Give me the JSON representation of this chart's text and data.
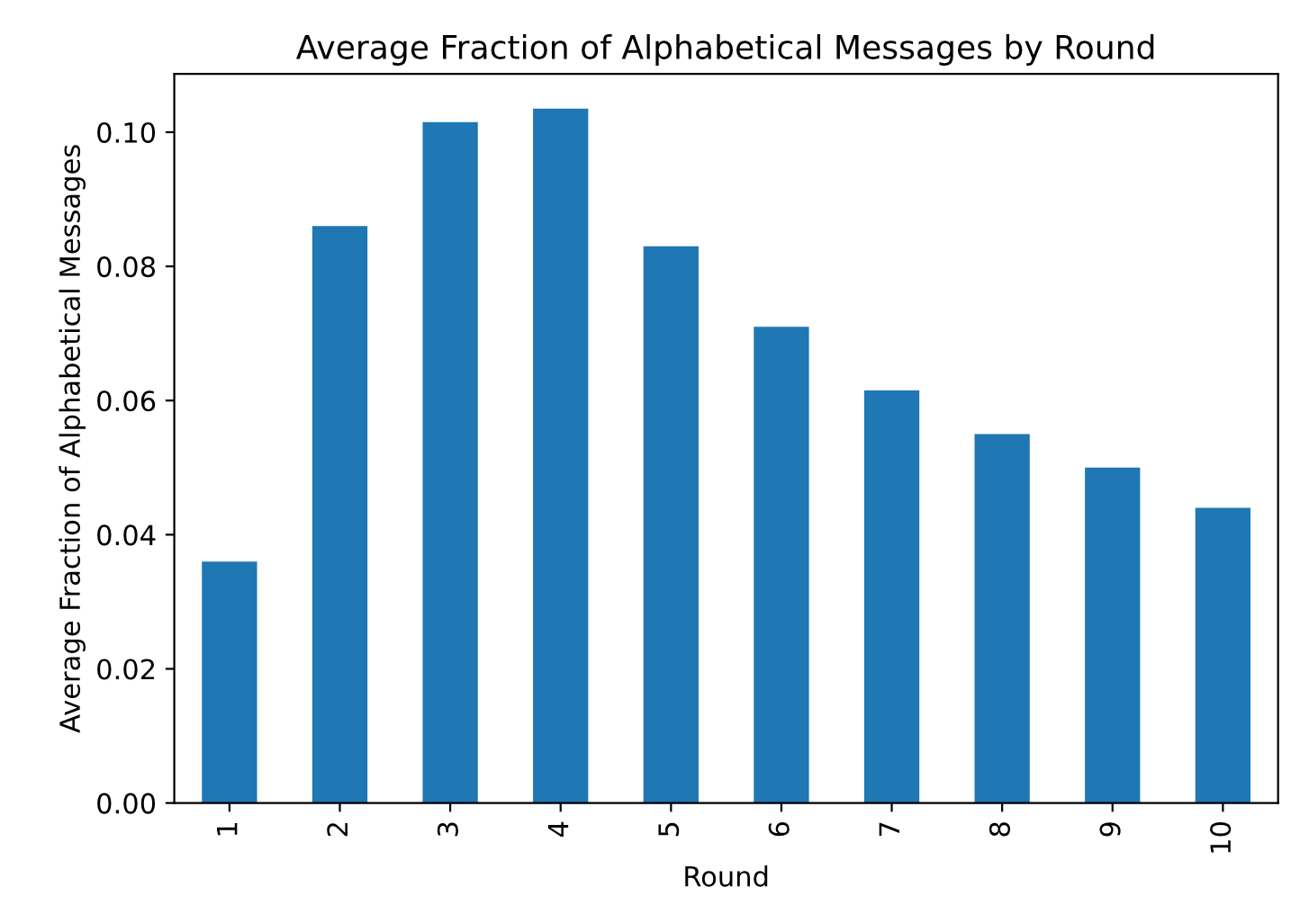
{
  "chart_data": {
    "type": "bar",
    "title": "Average Fraction of Alphabetical Messages by Round",
    "xlabel": "Round",
    "ylabel": "Average Fraction of Alphabetical Messages",
    "categories": [
      "1",
      "2",
      "3",
      "4",
      "5",
      "6",
      "7",
      "8",
      "9",
      "10"
    ],
    "values": [
      0.036,
      0.086,
      0.1015,
      0.1035,
      0.083,
      0.071,
      0.0615,
      0.055,
      0.05,
      0.044
    ],
    "color": "#1f77b4",
    "ylim": [
      0,
      0.1087
    ],
    "yticks": [
      {
        "value": 0,
        "label": "0.00"
      },
      {
        "value": 0.02,
        "label": "0.02"
      },
      {
        "value": 0.04,
        "label": "0.04"
      },
      {
        "value": 0.06,
        "label": "0.06"
      },
      {
        "value": 0.08,
        "label": "0.08"
      },
      {
        "value": 0.1,
        "label": "0.10"
      }
    ],
    "grid": false,
    "legend": false
  }
}
